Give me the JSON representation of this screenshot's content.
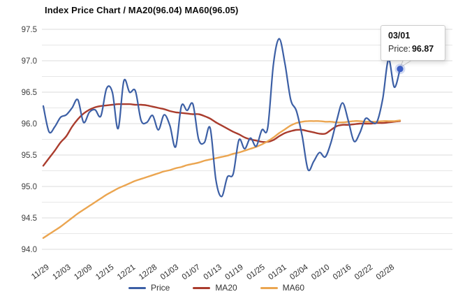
{
  "title": "Index Price Chart / MA20(96.04) MA60(96.05)",
  "tooltip": {
    "date": "03/01",
    "series_label": "Price:",
    "value": "96.87"
  },
  "legend": {
    "items": [
      {
        "label": "Price",
        "color": "#3C5FA5"
      },
      {
        "label": "MA20",
        "color": "#AA3C2D"
      },
      {
        "label": "MA60",
        "color": "#EBA550"
      }
    ]
  },
  "chart_data": {
    "type": "line",
    "title": "Index Price Chart / MA20(96.04) MA60(96.05)",
    "grid": "horizontal gridlines only",
    "ylim": [
      94.0,
      97.5
    ],
    "y_tick_step": 0.5,
    "y_minor_grid_step": 0.25,
    "x_labels": [
      "11/29",
      "12/03",
      "12/09",
      "12/15",
      "12/21",
      "12/28",
      "01/03",
      "01/07",
      "01/13",
      "01/19",
      "01/25",
      "01/31",
      "02/04",
      "02/10",
      "02/16",
      "02/22",
      "02/28"
    ],
    "legend_position": "bottom-center",
    "highlight_point": {
      "series": "Price",
      "date": "03/01",
      "value": 96.87
    },
    "series": [
      {
        "name": "Price",
        "color": "#3C5FA5",
        "values": [
          96.28,
          95.87,
          95.95,
          96.1,
          96.14,
          96.25,
          96.38,
          96.02,
          96.18,
          96.22,
          96.12,
          96.56,
          96.5,
          95.92,
          96.68,
          96.5,
          96.52,
          96.05,
          96.02,
          96.13,
          95.9,
          96.14,
          95.97,
          95.63,
          96.28,
          96.21,
          96.31,
          95.75,
          95.7,
          95.93,
          95.1,
          94.84,
          95.15,
          95.2,
          95.74,
          95.6,
          95.77,
          95.64,
          95.9,
          95.93,
          96.95,
          97.35,
          96.95,
          96.38,
          96.2,
          95.8,
          95.27,
          95.4,
          95.54,
          95.47,
          95.7,
          96.05,
          96.33,
          96.05,
          95.72,
          95.85,
          96.08,
          96.03,
          96.03,
          96.4,
          97.02,
          96.58,
          96.87
        ]
      },
      {
        "name": "MA20",
        "color": "#AA3C2D",
        "values": [
          95.33,
          95.45,
          95.57,
          95.7,
          95.8,
          95.95,
          96.07,
          96.16,
          96.22,
          96.26,
          96.28,
          96.29,
          96.3,
          96.31,
          96.31,
          96.31,
          96.3,
          96.3,
          96.29,
          96.27,
          96.25,
          96.23,
          96.2,
          96.18,
          96.17,
          96.16,
          96.15,
          96.15,
          96.12,
          96.08,
          96.02,
          95.97,
          95.92,
          95.87,
          95.83,
          95.78,
          95.75,
          95.73,
          95.71,
          95.71,
          95.74,
          95.8,
          95.85,
          95.88,
          95.9,
          95.9,
          95.88,
          95.86,
          95.84,
          95.84,
          95.9,
          95.96,
          95.98,
          95.98,
          95.99,
          96.0,
          96.0,
          96.0,
          96.01,
          96.01,
          96.02,
          96.03,
          96.04
        ]
      },
      {
        "name": "MA60",
        "color": "#EBA550",
        "values": [
          94.18,
          94.24,
          94.3,
          94.36,
          94.43,
          94.5,
          94.57,
          94.63,
          94.69,
          94.75,
          94.81,
          94.87,
          94.92,
          94.97,
          95.01,
          95.05,
          95.09,
          95.12,
          95.15,
          95.18,
          95.21,
          95.24,
          95.26,
          95.29,
          95.31,
          95.34,
          95.36,
          95.38,
          95.41,
          95.43,
          95.45,
          95.47,
          95.49,
          95.52,
          95.54,
          95.57,
          95.6,
          95.63,
          95.67,
          95.72,
          95.78,
          95.85,
          95.91,
          95.97,
          96.01,
          96.03,
          96.04,
          96.04,
          96.04,
          96.03,
          96.03,
          96.02,
          96.02,
          96.03,
          96.04,
          96.04,
          96.03,
          96.03,
          96.03,
          96.04,
          96.04,
          96.04,
          96.05
        ]
      }
    ]
  }
}
